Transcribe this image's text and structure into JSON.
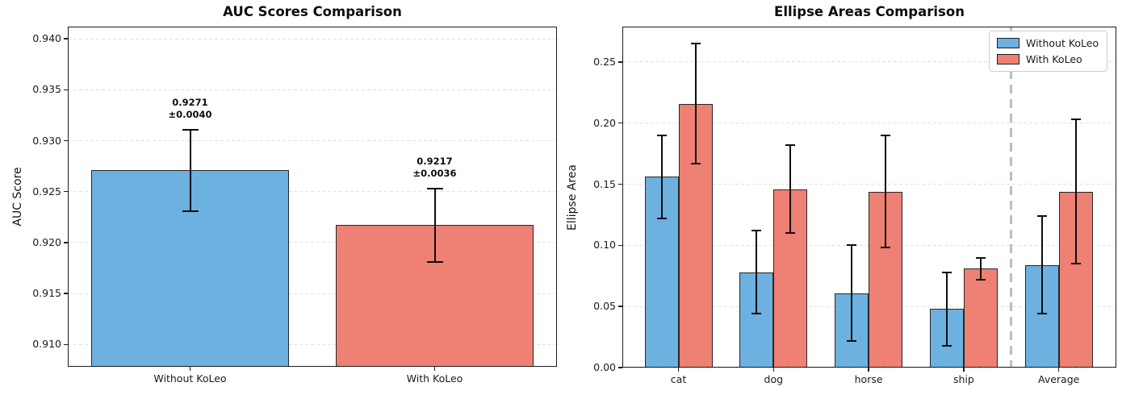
{
  "colors": {
    "without_koleo": "#6DB1E0",
    "with_koleo": "#EE8074",
    "bar_edge": "#262626",
    "error_bar": "#0d0d0d",
    "grid": "#e1e1e1",
    "divider": "#bdbdbd",
    "spine": "#1c1c1c",
    "text": "#1a1a1a"
  },
  "chart_data": [
    {
      "type": "bar",
      "title": "AUC Scores Comparison",
      "xlabel": "",
      "ylabel": "AUC Score",
      "categories": [
        "Without KoLeo",
        "With KoLeo"
      ],
      "values": [
        0.9271,
        0.9217
      ],
      "errors": [
        0.004,
        0.0036
      ],
      "annotations": [
        {
          "value": "0.9271",
          "error": "±0.0040"
        },
        {
          "value": "0.9217",
          "error": "±0.0036"
        }
      ],
      "ylim": [
        0.9078,
        0.9412
      ],
      "yticks": [
        0.91,
        0.915,
        0.92,
        0.925,
        0.93,
        0.935,
        0.94
      ],
      "ytick_labels": [
        "0.910",
        "0.915",
        "0.920",
        "0.925",
        "0.930",
        "0.935",
        "0.940"
      ],
      "grid": true,
      "legend_position": "none"
    },
    {
      "type": "bar",
      "title": "Ellipse Areas Comparison",
      "xlabel": "",
      "ylabel": "Ellipse Area",
      "categories": [
        "cat",
        "dog",
        "horse",
        "ship",
        "Average"
      ],
      "series": [
        {
          "name": "Without KoLeo",
          "values": [
            0.156,
            0.078,
            0.061,
            0.048,
            0.084
          ],
          "errors": [
            0.034,
            0.034,
            0.039,
            0.03,
            0.04
          ]
        },
        {
          "name": "With KoLeo",
          "values": [
            0.216,
            0.146,
            0.144,
            0.081,
            0.144
          ],
          "errors": [
            0.049,
            0.036,
            0.046,
            0.009,
            0.059
          ]
        }
      ],
      "hatched_categories": [
        "Average"
      ],
      "divider_before_category": "Average",
      "ylim": [
        0,
        0.279
      ],
      "yticks": [
        0.0,
        0.05,
        0.1,
        0.15,
        0.2,
        0.25
      ],
      "ytick_labels": [
        "0.00",
        "0.05",
        "0.10",
        "0.15",
        "0.20",
        "0.25"
      ],
      "legend": [
        "Without KoLeo",
        "With KoLeo"
      ],
      "legend_position": "upper right",
      "grid": true
    }
  ]
}
